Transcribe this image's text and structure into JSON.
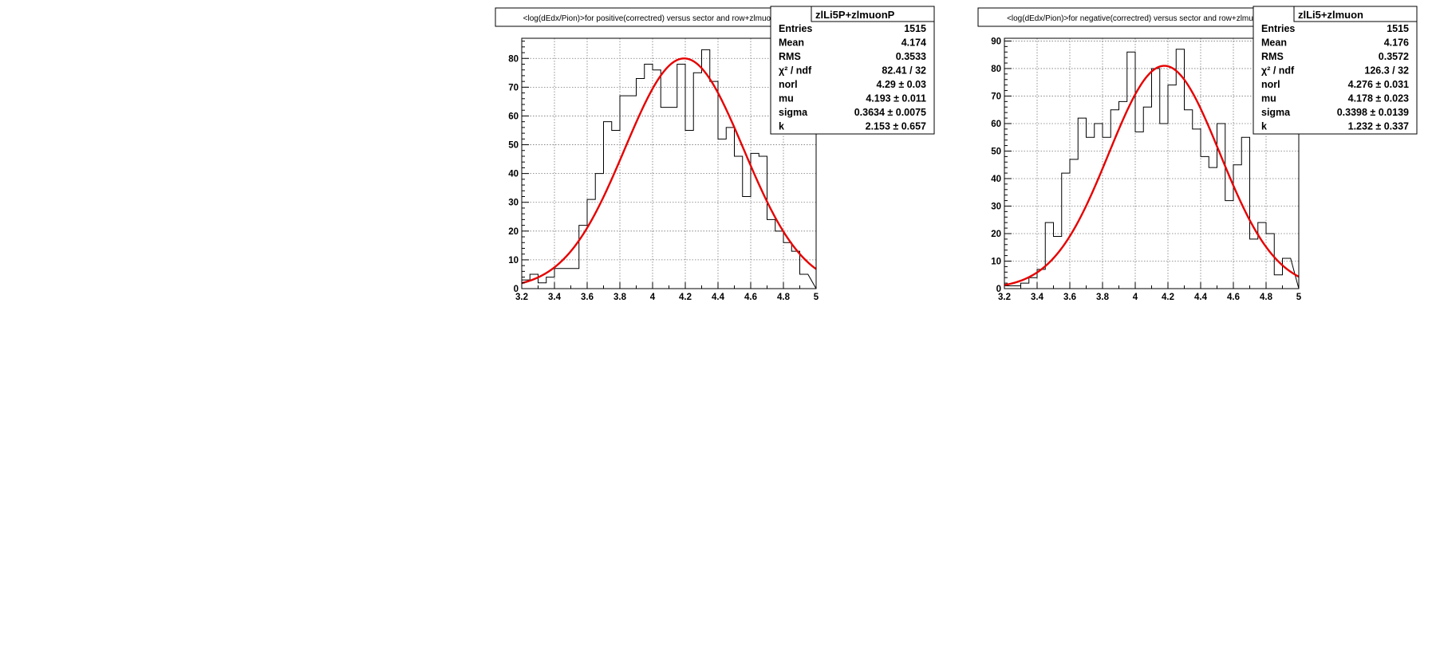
{
  "chart_data": [
    {
      "type": "bar",
      "title": "<log(dEdx/Pion)>for positive(correctred) versus sector and row+zlmuonP",
      "xlim": [
        3.2,
        5.0
      ],
      "ylim": [
        0,
        87
      ],
      "grid": true,
      "xticks": [
        "3.2",
        "3.4",
        "3.6",
        "3.8",
        "4",
        "4.2",
        "4.4",
        "4.6",
        "4.8",
        "5"
      ],
      "yticks": [
        "0",
        "10",
        "20",
        "30",
        "40",
        "50",
        "60",
        "70",
        "80"
      ],
      "hist": {
        "bin_edges_start": 3.2,
        "bin_width": 0.05,
        "values": [
          3,
          5,
          2,
          4,
          7,
          7,
          7,
          22,
          31,
          40,
          58,
          55,
          67,
          67,
          73,
          78,
          76,
          63,
          63,
          78,
          55,
          75,
          83,
          72,
          52,
          56,
          46,
          32,
          47,
          46,
          24,
          20,
          16,
          13,
          5
        ]
      },
      "fit": {
        "norl": 4.29,
        "mu": 4.193,
        "sigma": 0.3634,
        "peak": 80
      },
      "stats": {
        "name": "zlLi5P+zlmuonP",
        "rows": [
          {
            "label": "Entries",
            "value": "1515"
          },
          {
            "label": "Mean",
            "value": "4.174"
          },
          {
            "label": "RMS",
            "value": "0.3533"
          },
          {
            "label": "χ² / ndf",
            "value": "82.41 / 32"
          },
          {
            "label": "norl",
            "value": "4.29 ± 0.03"
          },
          {
            "label": "mu",
            "value": "4.193 ± 0.011"
          },
          {
            "label": "sigma",
            "value": "0.3634 ± 0.0075"
          },
          {
            "label": "k",
            "value": "2.153 ± 0.657"
          }
        ]
      }
    },
    {
      "type": "bar",
      "title": "<log(dEdx/Pion)>for negative(correctred) versus sector and row+zlmuon",
      "xlim": [
        3.2,
        5.0
      ],
      "ylim": [
        0,
        91
      ],
      "grid": true,
      "xticks": [
        "3.2",
        "3.4",
        "3.6",
        "3.8",
        "4",
        "4.2",
        "4.4",
        "4.6",
        "4.8",
        "5"
      ],
      "yticks": [
        "0",
        "10",
        "20",
        "30",
        "40",
        "50",
        "60",
        "70",
        "80",
        "90"
      ],
      "hist": {
        "bin_edges_start": 3.2,
        "bin_width": 0.05,
        "values": [
          1,
          1,
          2,
          4,
          7,
          24,
          19,
          42,
          47,
          62,
          55,
          60,
          55,
          65,
          68,
          86,
          57,
          66,
          80,
          60,
          74,
          87,
          65,
          58,
          48,
          44,
          60,
          32,
          45,
          55,
          18,
          24,
          20,
          5,
          11
        ]
      },
      "fit": {
        "norl": 4.276,
        "mu": 4.178,
        "sigma": 0.3398,
        "peak": 81
      },
      "stats": {
        "name": "zlLi5+zlmuon",
        "rows": [
          {
            "label": "Entries",
            "value": "1515"
          },
          {
            "label": "Mean",
            "value": "4.176"
          },
          {
            "label": "RMS",
            "value": "0.3572"
          },
          {
            "label": "χ² / ndf",
            "value": "126.3 / 32"
          },
          {
            "label": "norl",
            "value": "4.276 ± 0.031"
          },
          {
            "label": "mu",
            "value": "4.178 ± 0.023"
          },
          {
            "label": "sigma",
            "value": "0.3398 ± 0.0139"
          },
          {
            "label": "k",
            "value": "1.232 ± 0.337"
          }
        ]
      }
    }
  ]
}
